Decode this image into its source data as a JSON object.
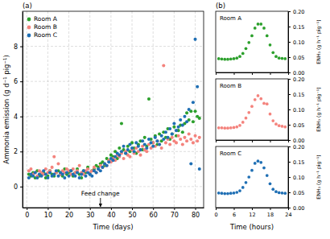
{
  "chart_data": [
    {
      "type": "scatter",
      "panel_label": "(a)",
      "x_label": "Time (days)",
      "y_label": "Ammonia emission (g d⁻¹ pig⁻¹)",
      "xlim": [
        -2,
        84
      ],
      "xticks": [
        0,
        10,
        20,
        30,
        40,
        50,
        60,
        70,
        80
      ],
      "ylim": [
        -1.2,
        10
      ],
      "yticks": [
        0,
        2,
        4,
        6,
        8
      ],
      "grid": true,
      "legend": "upper left",
      "annotations": [
        {
          "text": "Feed change",
          "x": 35
        }
      ],
      "x": [
        1,
        2,
        3,
        4,
        5,
        6,
        7,
        8,
        9,
        10,
        11,
        12,
        13,
        14,
        15,
        16,
        17,
        18,
        19,
        20,
        21,
        22,
        23,
        24,
        25,
        26,
        27,
        28,
        29,
        30,
        31,
        32,
        33,
        34,
        35,
        36,
        37,
        38,
        39,
        40,
        41,
        42,
        43,
        44,
        45,
        46,
        47,
        48,
        49,
        50,
        51,
        52,
        53,
        54,
        55,
        56,
        57,
        58,
        59,
        60,
        61,
        62,
        63,
        64,
        65,
        66,
        67,
        68,
        69,
        70,
        71,
        72,
        73,
        74,
        75,
        76,
        77,
        78,
        79,
        80,
        81,
        82
      ],
      "series": [
        {
          "name": "Room A",
          "color": "#2ca02c",
          "marker": "circle",
          "values": [
            0.7,
            0.6,
            0.8,
            0.5,
            0.9,
            0.6,
            0.7,
            0.8,
            0.5,
            0.6,
            0.9,
            0.7,
            0.6,
            0.8,
            0.9,
            0.7,
            0.6,
            1.0,
            0.7,
            0.8,
            0.9,
            0.6,
            0.8,
            1.0,
            0.7,
            0.5,
            0.9,
            0.8,
            1.1,
            0.7,
            0.9,
            1.0,
            1.2,
            1.1,
            1.3,
            1.4,
            1.2,
            1.6,
            1.5,
            1.8,
            1.7,
            2.0,
            1.6,
            2.2,
            3.6,
            2.1,
            1.9,
            2.3,
            2.0,
            2.5,
            2.2,
            1.9,
            2.4,
            2.6,
            2.1,
            2.8,
            2.3,
            5.0,
            2.7,
            2.5,
            2.9,
            2.4,
            3.0,
            2.6,
            3.1,
            2.8,
            3.3,
            2.7,
            3.0,
            3.4,
            2.9,
            3.2,
            3.5,
            3.1,
            3.6,
            4.2,
            3.8,
            4.3,
            3.7,
            4.3,
            4.0,
            3.9
          ]
        },
        {
          "name": "Room B",
          "color": "#f4837d",
          "marker": "circle",
          "values": [
            0.9,
            1.0,
            0.7,
            0.8,
            0.6,
            0.9,
            0.8,
            0.7,
            1.0,
            0.8,
            0.9,
            1.1,
            1.7,
            0.8,
            1.3,
            0.7,
            0.9,
            0.8,
            1.0,
            0.9,
            0.7,
            1.0,
            0.8,
            0.9,
            1.2,
            0.8,
            0.7,
            0.9,
            1.0,
            0.8,
            0.9,
            1.1,
            0.8,
            1.0,
            1.2,
            1.1,
            1.3,
            1.2,
            1.5,
            1.4,
            1.6,
            1.5,
            1.8,
            1.7,
            1.9,
            1.6,
            2.0,
            1.8,
            1.7,
            2.1,
            1.9,
            2.2,
            2.0,
            1.8,
            2.3,
            2.1,
            2.0,
            2.4,
            2.2,
            2.5,
            2.3,
            2.6,
            2.4,
            2.2,
            6.9,
            2.5,
            2.7,
            2.4,
            2.8,
            2.6,
            2.5,
            2.9,
            2.7,
            2.4,
            2.8,
            2.6,
            3.0,
            2.7,
            2.5,
            2.9,
            2.6,
            2.8
          ]
        },
        {
          "name": "Room C",
          "color": "#1f6fb4",
          "marker": "circle",
          "values": [
            0.5,
            0.7,
            0.6,
            0.8,
            0.5,
            0.7,
            0.6,
            0.9,
            0.7,
            0.5,
            0.8,
            0.6,
            0.7,
            0.9,
            0.6,
            0.8,
            0.7,
            0.5,
            0.8,
            0.6,
            0.9,
            0.7,
            0.6,
            0.8,
            0.5,
            0.7,
            0.9,
            0.6,
            0.8,
            0.7,
            0.6,
            0.9,
            0.8,
            1.0,
            0.9,
            1.1,
            1.3,
            1.2,
            1.4,
            1.6,
            1.5,
            1.7,
            1.9,
            1.8,
            2.0,
            2.3,
            1.9,
            2.1,
            2.4,
            2.2,
            2.0,
            2.5,
            2.3,
            2.1,
            2.6,
            2.4,
            2.2,
            2.7,
            2.5,
            2.3,
            2.8,
            2.6,
            2.4,
            2.9,
            2.7,
            3.1,
            2.8,
            3.3,
            3.0,
            3.6,
            3.2,
            3.4,
            3.8,
            3.5,
            4.0,
            3.7,
            4.4,
            1.3,
            4.8,
            8.4,
            5.7,
            1.0
          ]
        }
      ]
    },
    {
      "type": "scatter",
      "panel_label": "(b)",
      "title": "Room A",
      "y_label": "ENH₃ (g h⁻¹ pig⁻¹)",
      "tick_labels": "y",
      "xlim": [
        0,
        24
      ],
      "xticks": [
        0,
        6,
        12,
        18,
        24
      ],
      "ylim": [
        0,
        0.2
      ],
      "yticks": [
        {
          "value": 0,
          "label": "0.00"
        },
        {
          "value": 0.05,
          "label": "0.05"
        },
        {
          "value": 0.1,
          "label": "0.10"
        },
        {
          "value": 0.15,
          "label": "0.15"
        },
        {
          "value": 0.2,
          "label": "0.20"
        }
      ],
      "x": [
        1,
        2,
        3,
        4,
        5,
        6,
        7,
        8,
        9,
        10,
        11,
        12,
        13,
        14,
        15,
        16,
        17,
        18,
        19,
        20,
        21,
        22,
        23
      ],
      "series": [
        {
          "color": "#2ca02c",
          "marker": "circle",
          "values": [
            0.045,
            0.044,
            0.043,
            0.043,
            0.044,
            0.045,
            0.047,
            0.052,
            0.062,
            0.078,
            0.098,
            0.12,
            0.145,
            0.158,
            0.158,
            0.145,
            0.12,
            0.09,
            0.065,
            0.052,
            0.047,
            0.046,
            0.045
          ]
        }
      ]
    },
    {
      "type": "scatter",
      "title": "Room B",
      "y_label": "ENH₃ (g h⁻¹ pig⁻¹)",
      "tick_labels": "y",
      "xlim": [
        0,
        24
      ],
      "xticks": [
        0,
        6,
        12,
        18,
        24
      ],
      "ylim": [
        0,
        0.2
      ],
      "yticks": [
        {
          "value": 0,
          "label": "0.00"
        },
        {
          "value": 0.05,
          "label": "0.05"
        },
        {
          "value": 0.1,
          "label": "0.10"
        },
        {
          "value": 0.15,
          "label": "0.15"
        },
        {
          "value": 0.2,
          "label": "0.20"
        }
      ],
      "x": [
        1,
        2,
        3,
        4,
        5,
        6,
        7,
        8,
        9,
        10,
        11,
        12,
        13,
        14,
        15,
        16,
        17,
        18,
        19,
        20,
        21,
        22,
        23
      ],
      "series": [
        {
          "color": "#f4837d",
          "marker": "circle",
          "values": [
            0.04,
            0.04,
            0.039,
            0.039,
            0.04,
            0.041,
            0.043,
            0.048,
            0.058,
            0.072,
            0.09,
            0.11,
            0.132,
            0.145,
            0.135,
            0.12,
            0.118,
            0.085,
            0.063,
            0.052,
            0.047,
            0.045,
            0.043
          ]
        }
      ]
    },
    {
      "type": "scatter",
      "title": "Room C",
      "x_label": "Time (hours)",
      "y_label": "ENH₃ (g h⁻¹ pig⁻¹)",
      "xlim": [
        0,
        24
      ],
      "xticks": [
        0,
        6,
        12,
        18,
        24
      ],
      "ylim": [
        0,
        0.2
      ],
      "yticks": [
        {
          "value": 0,
          "label": "0.00"
        },
        {
          "value": 0.05,
          "label": "0.05"
        },
        {
          "value": 0.1,
          "label": "0.10"
        },
        {
          "value": 0.15,
          "label": "0.15"
        },
        {
          "value": 0.2,
          "label": "0.20"
        }
      ],
      "x": [
        1,
        2,
        3,
        4,
        5,
        6,
        7,
        8,
        9,
        10,
        11,
        12,
        13,
        14,
        15,
        16,
        17,
        18,
        19,
        20,
        21,
        22,
        23
      ],
      "series": [
        {
          "color": "#1f6fb4",
          "marker": "circle",
          "values": [
            0.048,
            0.047,
            0.046,
            0.046,
            0.047,
            0.048,
            0.05,
            0.055,
            0.066,
            0.082,
            0.1,
            0.122,
            0.145,
            0.152,
            0.148,
            0.13,
            0.105,
            0.078,
            0.06,
            0.052,
            0.049,
            0.048,
            0.047
          ]
        }
      ]
    }
  ]
}
